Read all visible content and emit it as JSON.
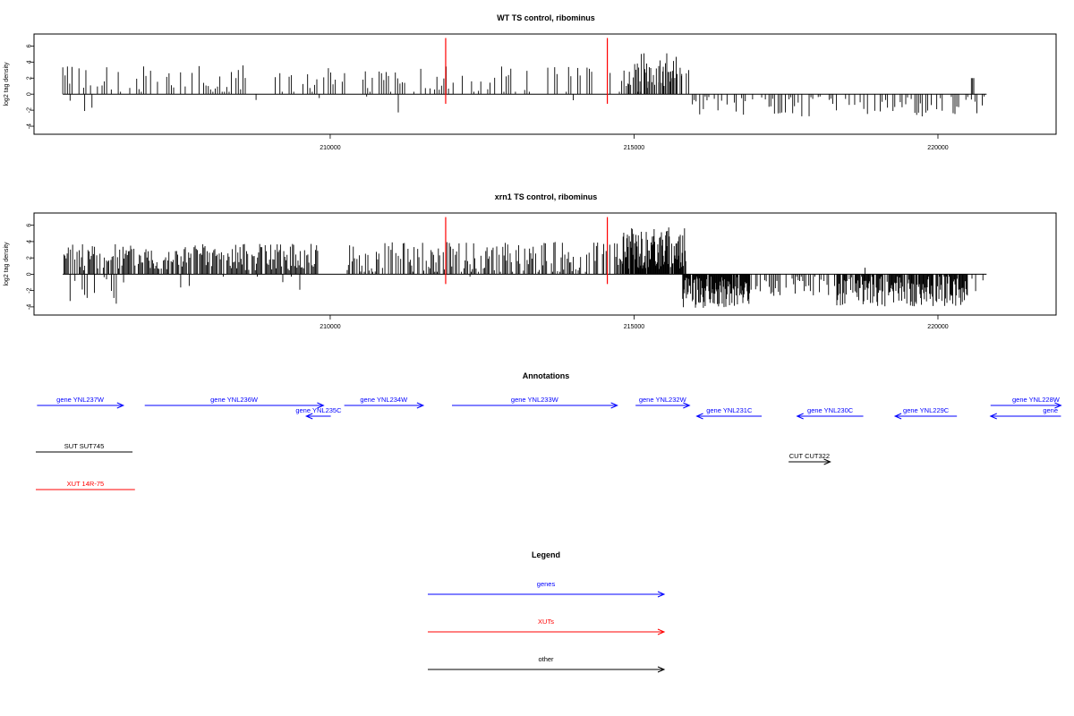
{
  "chart_data": [
    {
      "type": "bar",
      "title": "WT TS control, ribominus",
      "xlabel": "",
      "ylabel": "log2 tag density",
      "xlim": [
        205200,
        221900
      ],
      "ylim": [
        -5,
        7.5
      ],
      "yticks": [
        -4,
        -2,
        0,
        2,
        4,
        6
      ],
      "xticks": [
        210000,
        215000,
        220000
      ],
      "markers": [
        211900,
        214560
      ],
      "markers_color": "#ff0000",
      "series": [
        {
          "plus_strand": {
            "segments": [
              {
                "x0": 205600,
                "x1": 215900,
                "base": 1.4,
                "amp": 2.6,
                "step": 38,
                "fill": 0.55,
                "seed": 3
              },
              {
                "x0": 214900,
                "x1": 215800,
                "base": 2.6,
                "amp": 3.2,
                "step": 22,
                "fill": 0.85,
                "seed": 7
              },
              {
                "x0": 220550,
                "x1": 220600,
                "base": 2.0,
                "amp": 0,
                "step": 20,
                "fill": 1,
                "seed": 9
              }
            ]
          },
          "minus_strand": {
            "segments": [
              {
                "x0": 205600,
                "x1": 206200,
                "base": 1.2,
                "amp": 1.6,
                "step": 120,
                "fill": 0.5,
                "seed": 11
              },
              {
                "x0": 208000,
                "x1": 211200,
                "base": 0.7,
                "amp": 2.2,
                "step": 260,
                "fill": 0.25,
                "seed": 13
              },
              {
                "x0": 213600,
                "x1": 214300,
                "base": 0.8,
                "amp": 1.0,
                "step": 200,
                "fill": 0.3,
                "seed": 17
              },
              {
                "x0": 215900,
                "x1": 220800,
                "base": 1.2,
                "amp": 1.9,
                "step": 30,
                "fill": 0.55,
                "seed": 19
              }
            ]
          }
        }
      ]
    },
    {
      "type": "bar",
      "title": "xrn1 TS control, ribominus",
      "xlabel": "",
      "ylabel": "log2 tag density",
      "xlim": [
        205200,
        221900
      ],
      "ylim": [
        -5,
        7.5
      ],
      "yticks": [
        -4,
        -2,
        0,
        2,
        4,
        6
      ],
      "xticks": [
        210000,
        215000,
        220000
      ],
      "markers": [
        211900,
        214560
      ],
      "markers_color": "#ff0000",
      "series": [
        {
          "plus_strand": {
            "segments": [
              {
                "x0": 205600,
                "x1": 209800,
                "base": 1.8,
                "amp": 2.4,
                "step": 18,
                "fill": 0.8,
                "seed": 23
              },
              {
                "x0": 210200,
                "x1": 214800,
                "base": 1.6,
                "amp": 2.8,
                "step": 20,
                "fill": 0.7,
                "seed": 29
              },
              {
                "x0": 214800,
                "x1": 215850,
                "base": 2.6,
                "amp": 3.8,
                "step": 10,
                "fill": 0.95,
                "seed": 31
              },
              {
                "x0": 216800,
                "x1": 220800,
                "base": 0.4,
                "amp": 0.6,
                "step": 400,
                "fill": 0.3,
                "seed": 37
              }
            ]
          },
          "minus_strand": {
            "segments": [
              {
                "x0": 205600,
                "x1": 206700,
                "base": 1.6,
                "amp": 2.4,
                "step": 40,
                "fill": 0.5,
                "seed": 41
              },
              {
                "x0": 206700,
                "x1": 209800,
                "base": 0.8,
                "amp": 2.0,
                "step": 140,
                "fill": 0.3,
                "seed": 43
              },
              {
                "x0": 211500,
                "x1": 214600,
                "base": 0.5,
                "amp": 0.9,
                "step": 400,
                "fill": 0.3,
                "seed": 47
              },
              {
                "x0": 215800,
                "x1": 216900,
                "base": 1.8,
                "amp": 2.8,
                "step": 10,
                "fill": 0.95,
                "seed": 53
              },
              {
                "x0": 216900,
                "x1": 218300,
                "base": 1.2,
                "amp": 2.0,
                "step": 25,
                "fill": 0.6,
                "seed": 59
              },
              {
                "x0": 218300,
                "x1": 220500,
                "base": 1.6,
                "amp": 2.8,
                "step": 12,
                "fill": 0.85,
                "seed": 61
              },
              {
                "x0": 220500,
                "x1": 220800,
                "base": 1.0,
                "amp": 1.8,
                "step": 60,
                "fill": 0.5,
                "seed": 67
              }
            ]
          }
        }
      ]
    }
  ],
  "annotations": {
    "title": "Annotations",
    "xlim": [
      205200,
      221900
    ],
    "features": [
      {
        "label": "gene YNL237W",
        "start": 205220,
        "end": 206630,
        "strand": "+",
        "track": 0,
        "color": "#0000ff"
      },
      {
        "label": "gene YNL236W",
        "start": 206980,
        "end": 209900,
        "strand": "+",
        "track": 0,
        "color": "#0000ff"
      },
      {
        "label": "gene YNL235C",
        "start": 209620,
        "end": 210020,
        "strand": "-",
        "track": 1,
        "color": "#0000ff"
      },
      {
        "label": "gene YNL234W",
        "start": 210240,
        "end": 211530,
        "strand": "+",
        "track": 0,
        "color": "#0000ff"
      },
      {
        "label": "gene YNL233W",
        "start": 212000,
        "end": 214700,
        "strand": "+",
        "track": 0,
        "color": "#0000ff"
      },
      {
        "label": "gene YNL232W",
        "start": 215000,
        "end": 215880,
        "strand": "+",
        "track": 0,
        "color": "#0000ff"
      },
      {
        "label": "gene YNL231C",
        "start": 216000,
        "end": 217060,
        "strand": "-",
        "track": 1,
        "color": "#0000ff"
      },
      {
        "label": "gene YNL230C",
        "start": 217640,
        "end": 218720,
        "strand": "-",
        "track": 1,
        "color": "#0000ff"
      },
      {
        "label": "gene YNL229C",
        "start": 219240,
        "end": 220250,
        "strand": "-",
        "track": 1,
        "color": "#0000ff"
      },
      {
        "label": "gene YNL228W",
        "start": 220800,
        "end": 221950,
        "strand": "+",
        "track": 0,
        "color": "#0000ff"
      },
      {
        "label": "gene",
        "start": 220800,
        "end": 221950,
        "strand": "-",
        "track": 1,
        "color": "#0000ff"
      },
      {
        "label": "SUT SUT745",
        "start": 205200,
        "end": 206780,
        "strand": ".",
        "track": 2,
        "color": "#000000"
      },
      {
        "label": "CUT CUT322",
        "start": 217500,
        "end": 218180,
        "strand": "+",
        "track": 3,
        "color": "#000000"
      },
      {
        "label": "XUT 14R-75",
        "start": 205200,
        "end": 206820,
        "strand": ".",
        "track": 4,
        "color": "#ff0000"
      }
    ]
  },
  "legend": {
    "title": "Legend",
    "items": [
      {
        "label": "genes",
        "color": "#0000ff"
      },
      {
        "label": "XUTs",
        "color": "#ff0000"
      },
      {
        "label": "other",
        "color": "#000000"
      }
    ]
  }
}
